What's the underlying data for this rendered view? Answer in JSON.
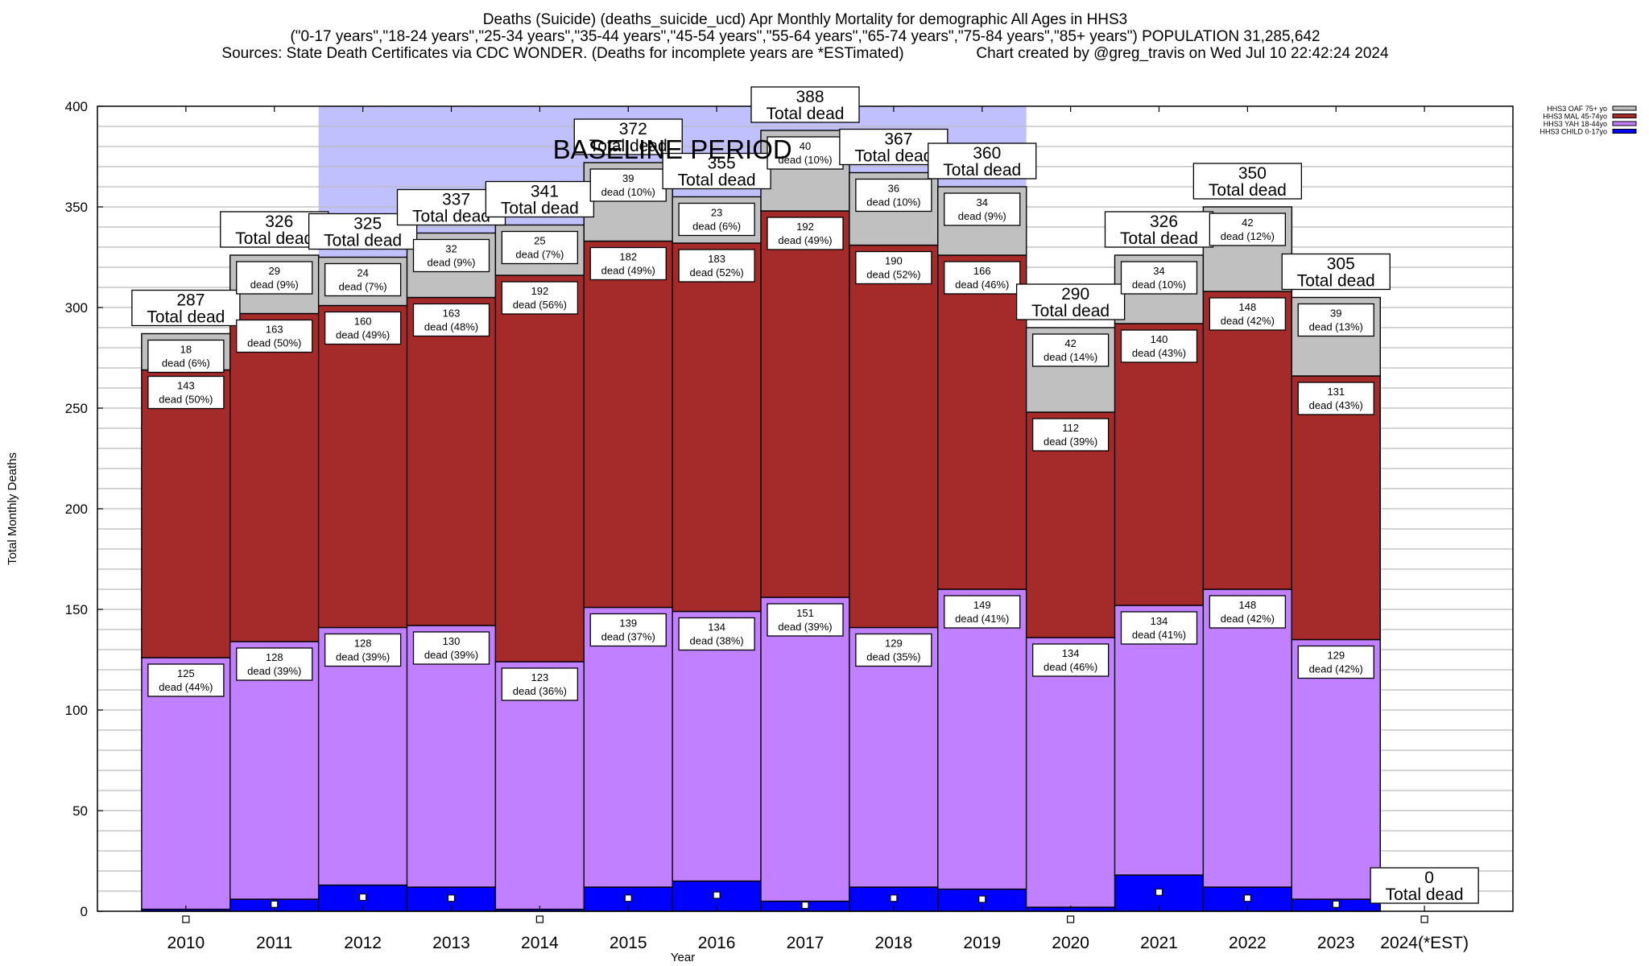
{
  "chart_data": {
    "type": "bar",
    "stacked": true,
    "title_lines": [
      "Deaths (Suicide) (deaths_suicide_ucd) Apr Monthly Mortality for demographic All Ages in HHS3",
      "(\"0-17 years\",\"18-24 years\",\"25-34 years\",\"35-44 years\",\"45-54 years\",\"55-64 years\",\"65-74 years\",\"75-84 years\",\"85+ years\") POPULATION 31,285,642",
      "Sources: State Death Certificates via CDC WONDER. (Deaths for incomplete years are *ESTimated)                 Chart created by @greg_travis on Wed Jul 10 22:42:24 2024"
    ],
    "xlabel": "Year",
    "ylabel": "Total Monthly Deaths",
    "ylim": [
      0,
      400
    ],
    "yticks": [
      0,
      50,
      100,
      150,
      200,
      250,
      300,
      350,
      400
    ],
    "grid": true,
    "legend_position": "top-right",
    "categories": [
      "2010",
      "2011",
      "2012",
      "2013",
      "2014",
      "2015",
      "2016",
      "2017",
      "2018",
      "2019",
      "2020",
      "2021",
      "2022",
      "2023",
      "2024(*EST)"
    ],
    "series": [
      {
        "name": "HHS3 CHILD 0-17yo",
        "color": "#0000ff",
        "values": [
          1,
          6,
          13,
          12,
          1,
          12,
          15,
          5,
          12,
          11,
          2,
          18,
          12,
          6,
          0
        ],
        "labeled": false
      },
      {
        "name": "HHS3 YAH 18-44yo",
        "color": "#c080ff",
        "values": [
          125,
          128,
          128,
          130,
          123,
          139,
          134,
          151,
          129,
          149,
          134,
          134,
          148,
          129,
          0
        ],
        "percents": [
          "44%",
          "39%",
          "39%",
          "39%",
          "36%",
          "37%",
          "38%",
          "39%",
          "35%",
          "41%",
          "46%",
          "41%",
          "42%",
          "42%",
          ""
        ],
        "labeled": true
      },
      {
        "name": "HHS3 MAL 45-74yo",
        "color": "#a52a2a",
        "values": [
          143,
          163,
          160,
          163,
          192,
          182,
          183,
          192,
          190,
          166,
          112,
          140,
          148,
          131,
          0
        ],
        "percents": [
          "50%",
          "50%",
          "49%",
          "48%",
          "56%",
          "49%",
          "52%",
          "49%",
          "52%",
          "46%",
          "39%",
          "43%",
          "42%",
          "43%",
          ""
        ],
        "labeled": true
      },
      {
        "name": "HHS3 OAF 75+ yo",
        "color": "#c0c0c0",
        "values": [
          18,
          29,
          24,
          32,
          25,
          39,
          23,
          40,
          36,
          34,
          42,
          34,
          42,
          39,
          0
        ],
        "percents": [
          "6%",
          "9%",
          "7%",
          "9%",
          "7%",
          "10%",
          "6%",
          "10%",
          "10%",
          "9%",
          "14%",
          "10%",
          "12%",
          "13%",
          ""
        ],
        "labeled": true
      }
    ],
    "totals": [
      287,
      326,
      325,
      337,
      341,
      372,
      355,
      388,
      367,
      360,
      290,
      326,
      350,
      305,
      0
    ],
    "total_label_suffix": "Total dead",
    "segment_label_word": "dead",
    "annotations": [
      {
        "text": "BASELINE PERIOD",
        "x_start": "2012",
        "x_end": "2019",
        "color": "#c0c0ff"
      }
    ]
  }
}
